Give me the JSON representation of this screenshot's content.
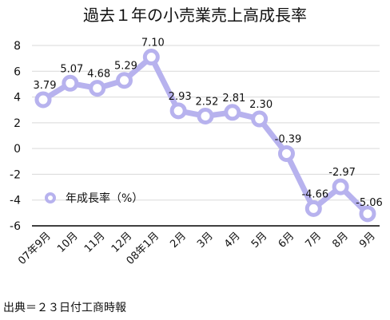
{
  "chart_data": {
    "type": "line",
    "title": "過去１年の小売業売上高成長率",
    "categories": [
      "07年9月",
      "10月",
      "11月",
      "12月",
      "08年1月",
      "2月",
      "3月",
      "4月",
      "5月",
      "6月",
      "7月",
      "8月",
      "9月"
    ],
    "series": [
      {
        "name": "年成長率（%）",
        "values": [
          3.79,
          5.07,
          4.68,
          5.29,
          7.1,
          2.93,
          2.52,
          2.81,
          2.3,
          -0.39,
          -4.66,
          -2.97,
          -5.06
        ],
        "labels": [
          "3.79",
          "5.07",
          "4.68",
          "5.29",
          "7.10",
          "2.93",
          "2.52",
          "2.81",
          "2.30",
          "-0.39",
          "-4.66",
          "-2.97",
          "-5.06"
        ]
      }
    ],
    "y_ticks": [
      "8",
      "6",
      "4",
      "2",
      "0",
      "-2",
      "-4",
      "-6"
    ],
    "ylim": [
      -6,
      8
    ],
    "grid": true,
    "legend_position": "left",
    "colors": {
      "series": "#b7b2ee",
      "grid": "#d9d9d9",
      "axis_bottom": "#000000"
    }
  },
  "source": "出典＝２３日付工商時報"
}
